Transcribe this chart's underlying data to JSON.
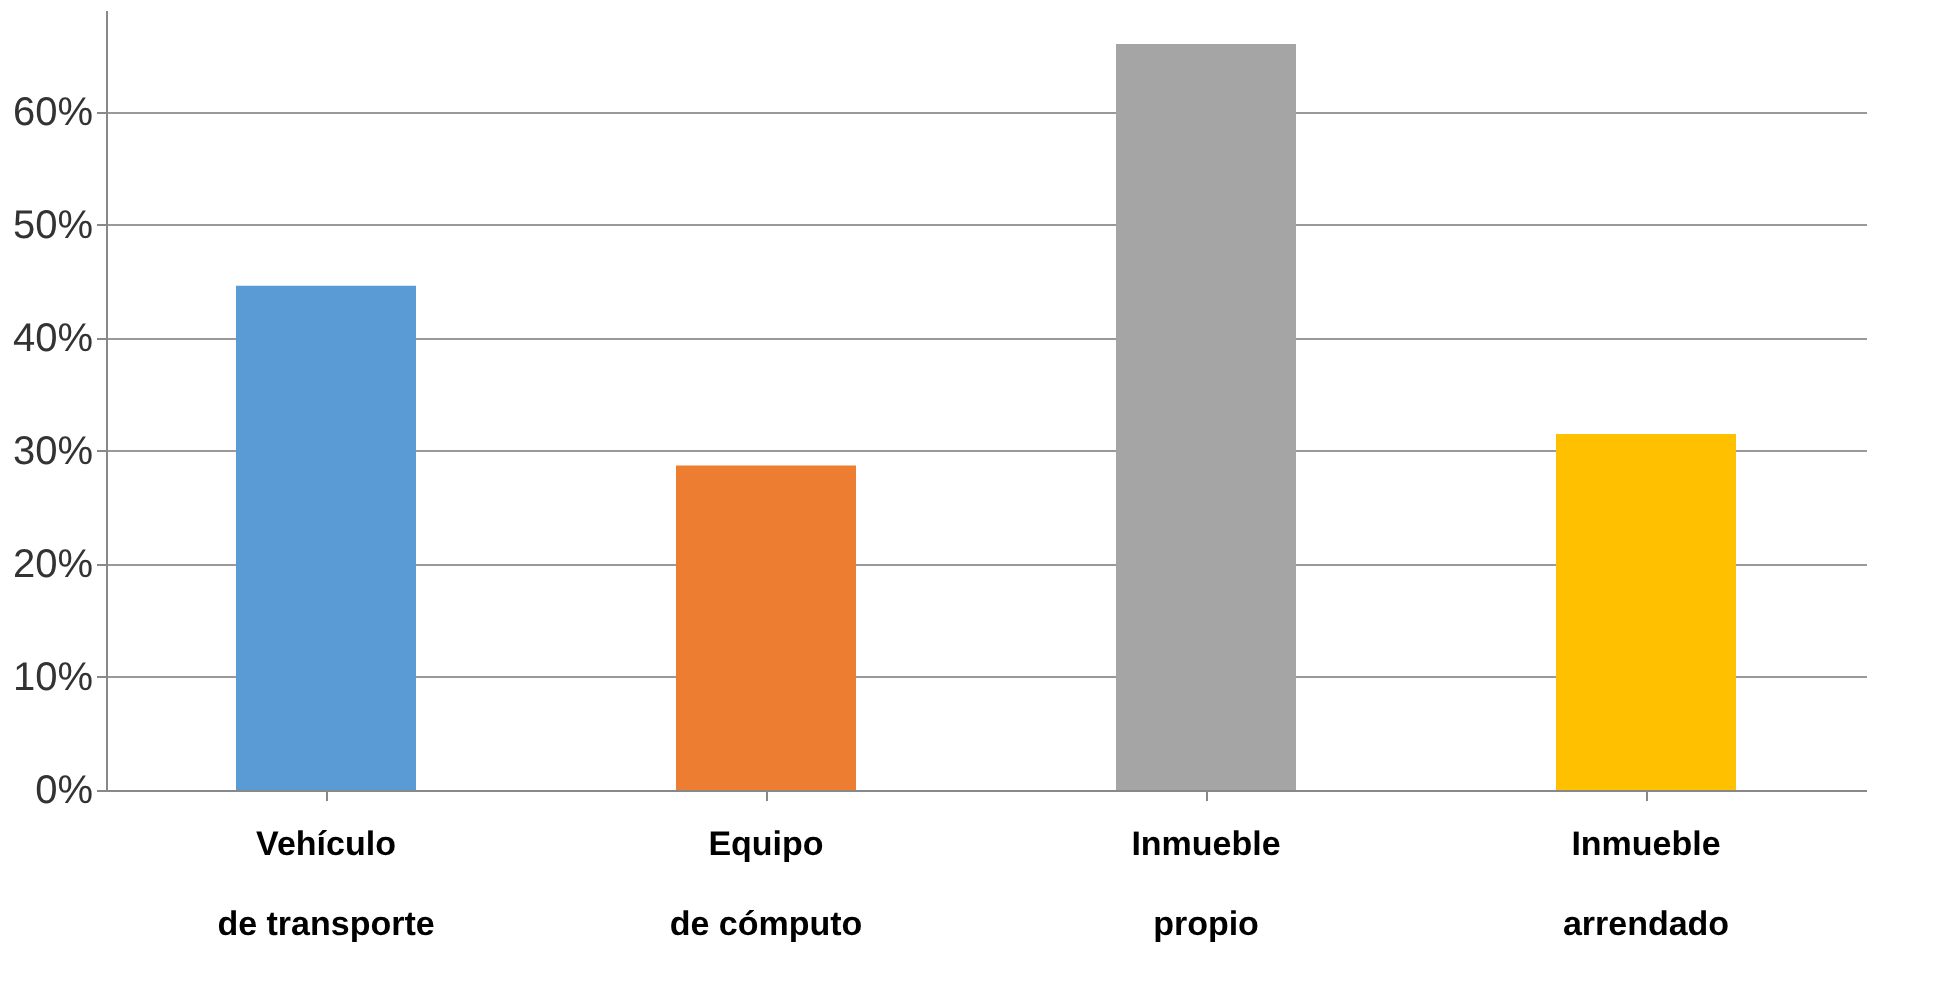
{
  "chart_data": {
    "type": "bar",
    "categories": [
      "Vehículo\nde transporte",
      "Equipo\nde cómputo",
      "Inmueble\npropio",
      "Inmueble\narrendado"
    ],
    "values": [
      44.6,
      28.7,
      66,
      31.5
    ],
    "colors": [
      "#5b9bd5",
      "#ed7d31",
      "#a5a5a5",
      "#ffc000"
    ],
    "ylim": [
      0,
      69
    ],
    "yticks": [
      {
        "value": 0,
        "label": "0%"
      },
      {
        "value": 10,
        "label": "10%"
      },
      {
        "value": 20,
        "label": "20%"
      },
      {
        "value": 30,
        "label": "30%"
      },
      {
        "value": 40,
        "label": "40%"
      },
      {
        "value": 50,
        "label": "50%"
      },
      {
        "value": 60,
        "label": "60%"
      }
    ],
    "grid": "y"
  }
}
